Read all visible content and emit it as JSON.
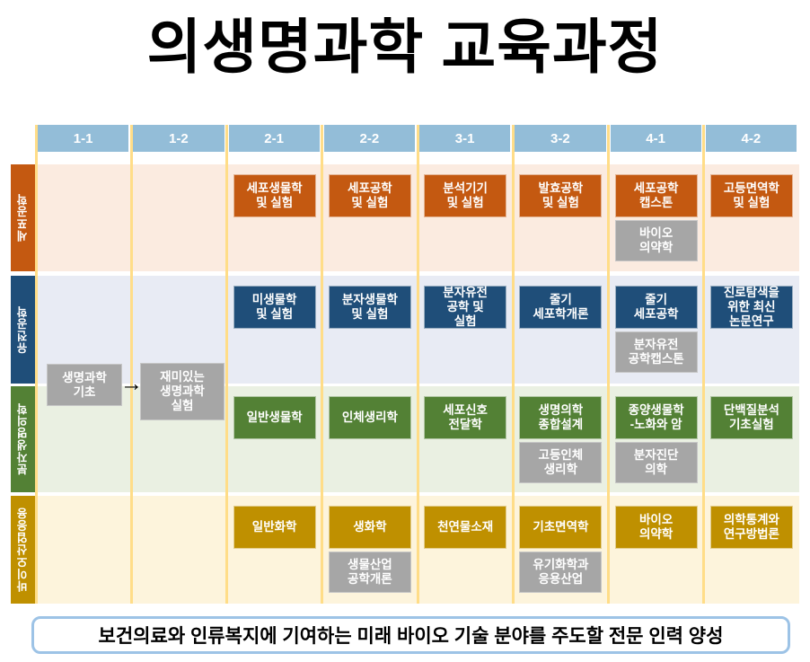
{
  "title": "의생명과학 교육과정",
  "banner": "보건의료와 인류복지에 기여하는 미래 바이오 기술 분야를 주도할 전문 인력 양성",
  "semesters": [
    "1-1",
    "1-2",
    "2-1",
    "2-2",
    "3-1",
    "3-2",
    "4-1",
    "4-2"
  ],
  "icons": {
    "arrow_right": "→"
  },
  "colors": {
    "header_bg": "#93BDD8",
    "separator": "#FFDD88",
    "sub_box": "#A6A6A6",
    "banner_border": "#9DC3E6"
  },
  "bridge": {
    "from": "생명과학\n기초",
    "to": "재미있는\n생명과학\n실험"
  },
  "tracks": [
    {
      "label": "세포공학",
      "color": "#C45911",
      "bg": "#FBEBE0",
      "courses": [
        {
          "col": "2-1",
          "main": "세포생물학\n및 실험"
        },
        {
          "col": "2-2",
          "main": "세포공학\n및 실험"
        },
        {
          "col": "3-1",
          "main": "분석기기\n및 실험"
        },
        {
          "col": "3-2",
          "main": "발효공학\n및 실험"
        },
        {
          "col": "4-1",
          "main": "세포공학\n캡스톤",
          "sub": "바이오\n의약학"
        },
        {
          "col": "4-2",
          "main": "고등면역학\n및 실험"
        }
      ]
    },
    {
      "label": "유전공학",
      "color": "#1F4E79",
      "bg": "#E8EBF4",
      "courses": [
        {
          "col": "2-1",
          "main": "미생물학\n및 실험"
        },
        {
          "col": "2-2",
          "main": "분자생물학\n및 실험"
        },
        {
          "col": "3-1",
          "main": "분자유전\n공학 및\n실험"
        },
        {
          "col": "3-2",
          "main": "줄기\n세포학개론"
        },
        {
          "col": "4-1",
          "main": "줄기\n세포공학",
          "sub": "분자유전\n공학캡스톤"
        },
        {
          "col": "4-2",
          "main": "진로탐색을\n위한 최신\n논문연구"
        }
      ]
    },
    {
      "label": "분자생명의학",
      "color": "#538135",
      "bg": "#EAF0E2",
      "courses": [
        {
          "col": "2-1",
          "main": "일반생물학"
        },
        {
          "col": "2-2",
          "main": "인체생리학"
        },
        {
          "col": "3-1",
          "main": "세포신호\n전달학"
        },
        {
          "col": "3-2",
          "main": "생명의학\n종합설계",
          "sub": "고등인체\n생리학"
        },
        {
          "col": "4-1",
          "main": "종양생물학\n-노화와 암",
          "sub": "분자진단\n의학"
        },
        {
          "col": "4-2",
          "main": "단백질분석\n기초실험"
        }
      ]
    },
    {
      "label": "바이오산업응용",
      "color": "#BF9000",
      "bg": "#FDF4DC",
      "courses": [
        {
          "col": "2-1",
          "main": "일반화학"
        },
        {
          "col": "2-2",
          "main": "생화학",
          "sub": "생물산업\n공학개론"
        },
        {
          "col": "3-1",
          "main": "천연물소재"
        },
        {
          "col": "3-2",
          "main": "기초면역학",
          "sub": "유기화학과\n응용산업"
        },
        {
          "col": "4-1",
          "main": "바이오\n의약학"
        },
        {
          "col": "4-2",
          "main": "의학통계와\n연구방법론"
        }
      ]
    }
  ]
}
